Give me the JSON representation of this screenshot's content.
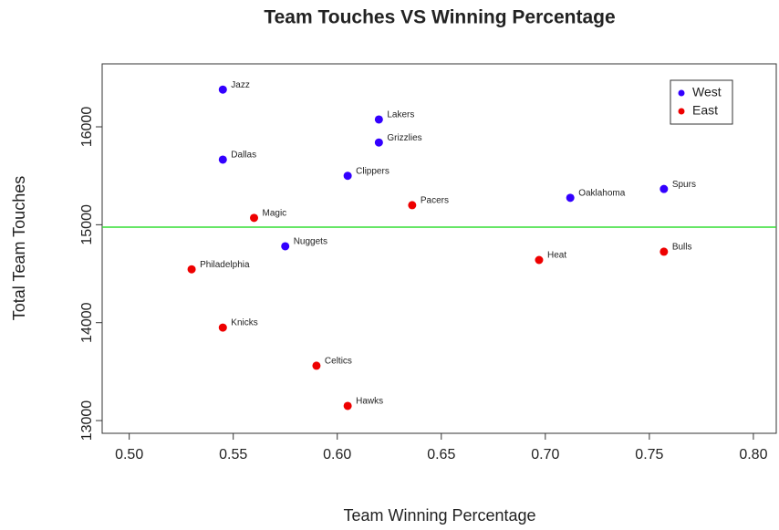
{
  "chart_data": {
    "type": "scatter",
    "title": "Team Touches VS Winning Percentage",
    "x_label": "Team Winning Percentage",
    "y_label": "Total Team Touches",
    "xlim": [
      0.487,
      0.811
    ],
    "ylim": [
      12870,
      16643
    ],
    "xticks": [
      {
        "value": 0.5,
        "label": "0.50"
      },
      {
        "value": 0.55,
        "label": "0.55"
      },
      {
        "value": 0.6,
        "label": "0.60"
      },
      {
        "value": 0.65,
        "label": "0.65"
      },
      {
        "value": 0.7,
        "label": "0.70"
      },
      {
        "value": 0.75,
        "label": "0.75"
      },
      {
        "value": 0.8,
        "label": "0.80"
      }
    ],
    "yticks": [
      13000,
      14000,
      15000,
      16000
    ],
    "hline": {
      "value": 14975,
      "color": "#33dd33"
    },
    "legend": "top-right",
    "series": [
      {
        "name": "West",
        "color": "#3300ff",
        "labels": [
          "Jazz",
          "Lakers",
          "Grizzlies",
          "Dallas",
          "Clippers",
          "Oaklahoma",
          "Spurs",
          "Nuggets"
        ],
        "x": [
          0.545,
          0.62,
          0.62,
          0.545,
          0.605,
          0.712,
          0.757,
          0.575
        ],
        "values": [
          16380,
          16075,
          15840,
          15665,
          15500,
          15275,
          15365,
          14780
        ]
      },
      {
        "name": "East",
        "color": "#ee0000",
        "labels": [
          "Magic",
          "Pacers",
          "Heat",
          "Bulls",
          "Philadelphia",
          "Knicks",
          "Celtics",
          "Hawks"
        ],
        "x": [
          0.56,
          0.636,
          0.697,
          0.757,
          0.53,
          0.545,
          0.59,
          0.605
        ],
        "values": [
          15070,
          15200,
          14640,
          14725,
          14545,
          13950,
          13560,
          13150
        ]
      }
    ]
  }
}
